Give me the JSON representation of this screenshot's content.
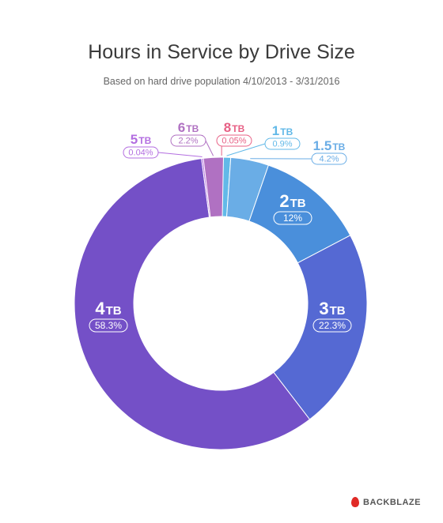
{
  "title": "Hours in Service by Drive Size",
  "subtitle": "Based on hard drive population 4/10/2013 - 3/31/2016",
  "brand": {
    "name": "BACKBLAZE",
    "icon": "flame-icon",
    "icon_color": "#e02a26"
  },
  "chart_data": {
    "type": "pie",
    "donut": true,
    "title": "Hours in Service by Drive Size",
    "subtitle": "Based on hard drive population 4/10/2013 - 3/31/2016",
    "slices": [
      {
        "size": "8",
        "unit": "TB",
        "value": 0.05,
        "pct_label": "0.05%",
        "color": "#e76085"
      },
      {
        "size": "1",
        "unit": "TB",
        "value": 0.9,
        "pct_label": "0.9%",
        "color": "#62b9e8"
      },
      {
        "size": "1.5",
        "unit": "TB",
        "value": 4.2,
        "pct_label": "4.2%",
        "color": "#6aade6"
      },
      {
        "size": "2",
        "unit": "TB",
        "value": 12,
        "pct_label": "12%",
        "color": "#4a8fdb"
      },
      {
        "size": "3",
        "unit": "TB",
        "value": 22.3,
        "pct_label": "22.3%",
        "color": "#5569d3"
      },
      {
        "size": "4",
        "unit": "TB",
        "value": 58.3,
        "pct_label": "58.3%",
        "color": "#7450c7"
      },
      {
        "size": "5",
        "unit": "TB",
        "value": 0.04,
        "pct_label": "0.04%",
        "color": "#b36ee0"
      },
      {
        "size": "6",
        "unit": "TB",
        "value": 2.2,
        "pct_label": "2.2%",
        "color": "#b071c2"
      }
    ]
  }
}
